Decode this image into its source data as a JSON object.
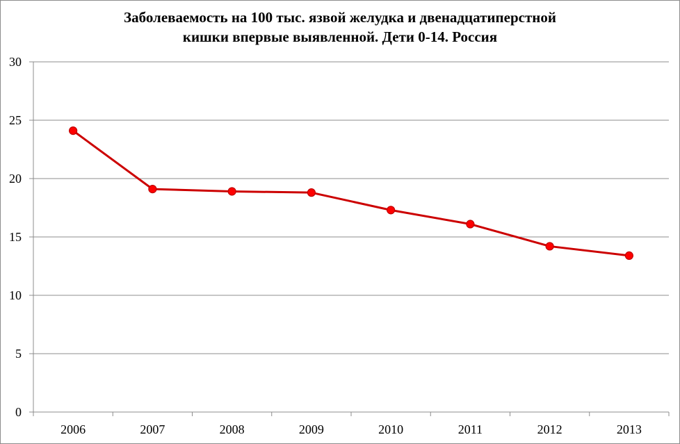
{
  "title": {
    "line1": "Заболеваемость на 100 тыс. язвой желудка и двенадцатиперстной",
    "line2": "кишки впервые выявленной.  Дети 0-14. Россия"
  },
  "colors": {
    "line": "#CC0000",
    "marker_fill": "#FF0000",
    "marker_stroke": "#C00000",
    "grid": "#8C8C8C",
    "axis": "#8C8C8C"
  },
  "chart_data": {
    "type": "line",
    "title": "Заболеваемость на 100 тыс. язвой желудка и двенадцатиперстной кишки впервые выявленной.  Дети 0-14. Россия",
    "xlabel": "",
    "ylabel": "",
    "categories": [
      "2006",
      "2007",
      "2008",
      "2009",
      "2010",
      "2011",
      "2012",
      "2013"
    ],
    "series": [
      {
        "name": "Заболеваемость на 100 тыс.",
        "values": [
          24.1,
          19.1,
          18.9,
          18.8,
          17.3,
          16.1,
          14.2,
          13.4
        ]
      }
    ],
    "ylim": [
      0,
      30
    ],
    "yticks": [
      0,
      5,
      10,
      15,
      20,
      25,
      30
    ],
    "grid": true,
    "legend": "none",
    "markers": true
  }
}
